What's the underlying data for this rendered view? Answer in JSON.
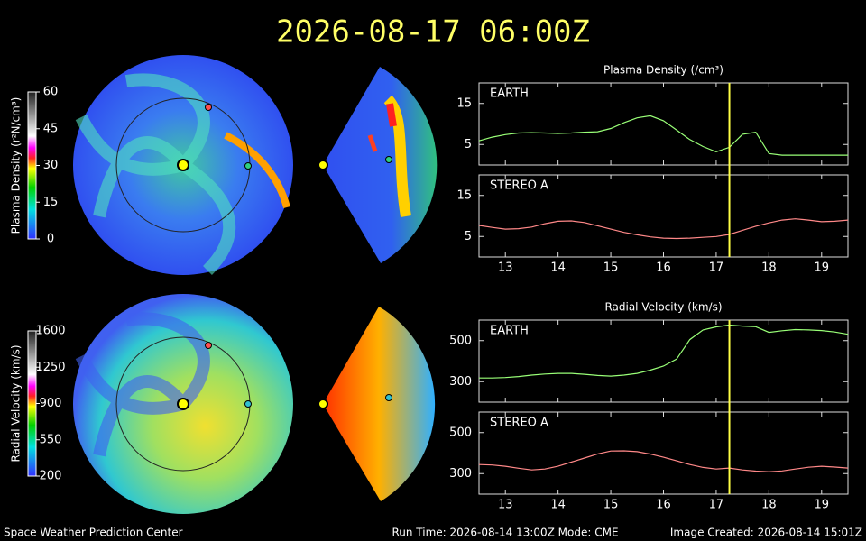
{
  "title": "2026-08-17 06:00Z",
  "footer": {
    "left": "Space Weather Prediction Center",
    "center": "Run Time: 2026-08-14 13:00Z  Mode: CME",
    "right": "Image Created: 2026-08-14 15:01Z"
  },
  "colorbars": [
    {
      "label": "Plasma Density (r²N/cm³)",
      "lim": [
        0,
        60
      ],
      "ticks": [
        0,
        15,
        30,
        45,
        60
      ]
    },
    {
      "label": "Radial Velocity (km/s)",
      "lim": [
        200,
        1600
      ],
      "ticks": [
        200,
        550,
        900,
        1250,
        1600
      ]
    }
  ],
  "chart_data": [
    {
      "type": "line",
      "title": "Plasma Density (/cm³)",
      "x": [
        12.5,
        12.75,
        13,
        13.25,
        13.5,
        13.75,
        14,
        14.25,
        14.5,
        14.75,
        15,
        15.25,
        15.5,
        15.75,
        16,
        16.25,
        16.5,
        16.75,
        17,
        17.25,
        17.5,
        17.75,
        18,
        18.25,
        18.5,
        18.75,
        19,
        19.25,
        19.5
      ],
      "xlim": [
        12.5,
        19.5
      ],
      "xticks": [
        13,
        14,
        15,
        16,
        17,
        18,
        19
      ],
      "marker_x": 17.25,
      "marker_color": "#ffff44",
      "series": [
        {
          "name": "EARTH",
          "color": "#99ff77",
          "ylim": [
            0,
            20
          ],
          "yticks": [
            5,
            15
          ],
          "values": [
            5.9,
            6.8,
            7.4,
            7.8,
            7.9,
            7.8,
            7.7,
            7.8,
            8.0,
            8.1,
            8.9,
            10.3,
            11.5,
            12.0,
            10.8,
            8.5,
            6.2,
            4.5,
            3.2,
            4.3,
            7.5,
            8.0,
            2.8,
            2.4,
            2.4,
            2.4,
            2.4,
            2.4,
            2.4
          ]
        },
        {
          "name": "STEREO A",
          "color": "#ff8888",
          "ylim": [
            0,
            20
          ],
          "yticks": [
            5,
            15
          ],
          "values": [
            7.7,
            7.2,
            6.8,
            6.9,
            7.3,
            8.1,
            8.7,
            8.8,
            8.4,
            7.6,
            6.8,
            6.0,
            5.4,
            4.9,
            4.6,
            4.5,
            4.6,
            4.8,
            5.0,
            5.5,
            6.5,
            7.5,
            8.3,
            9.0,
            9.3,
            9.0,
            8.6,
            8.7,
            9.0
          ]
        }
      ]
    },
    {
      "type": "line",
      "title": "Radial Velocity (km/s)",
      "x": [
        12.5,
        12.75,
        13,
        13.25,
        13.5,
        13.75,
        14,
        14.25,
        14.5,
        14.75,
        15,
        15.25,
        15.5,
        15.75,
        16,
        16.25,
        16.5,
        16.75,
        17,
        17.25,
        17.5,
        17.75,
        18,
        18.25,
        18.5,
        18.75,
        19,
        19.25,
        19.5
      ],
      "xlim": [
        12.5,
        19.5
      ],
      "xticks": [
        13,
        14,
        15,
        16,
        17,
        18,
        19
      ],
      "marker_x": 17.25,
      "marker_color": "#ffff44",
      "series": [
        {
          "name": "EARTH",
          "color": "#99ff77",
          "ylim": [
            200,
            600
          ],
          "yticks": [
            300,
            500
          ],
          "values": [
            318,
            318,
            320,
            325,
            332,
            337,
            340,
            340,
            336,
            330,
            327,
            332,
            340,
            356,
            376,
            410,
            505,
            552,
            567,
            576,
            571,
            568,
            540,
            548,
            554,
            552,
            549,
            542,
            531
          ]
        },
        {
          "name": "STEREO A",
          "color": "#ff8888",
          "ylim": [
            200,
            600
          ],
          "yticks": [
            300,
            500
          ],
          "values": [
            344,
            342,
            336,
            326,
            318,
            322,
            336,
            356,
            376,
            396,
            410,
            411,
            407,
            395,
            380,
            362,
            344,
            330,
            322,
            327,
            318,
            312,
            309,
            313,
            322,
            331,
            336,
            332,
            327
          ]
        }
      ]
    }
  ]
}
